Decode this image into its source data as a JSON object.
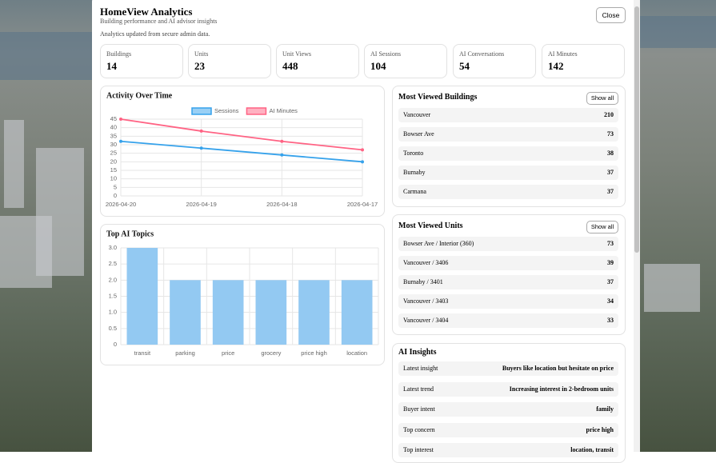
{
  "header": {
    "title": "HomeView Analytics",
    "subtitle": "Building performance and AI advisor insights",
    "note": "Analytics updated from secure admin data.",
    "close": "Close"
  },
  "stats": [
    {
      "label": "Buildings",
      "value": "14"
    },
    {
      "label": "Units",
      "value": "23"
    },
    {
      "label": "Unit Views",
      "value": "448"
    },
    {
      "label": "AI Sessions",
      "value": "104"
    },
    {
      "label": "AI Conversations",
      "value": "54"
    },
    {
      "label": "AI Minutes",
      "value": "142"
    }
  ],
  "chart_data": [
    {
      "type": "line",
      "title": "Activity Over Time",
      "categories": [
        "2026-04-20",
        "2026-04-19",
        "2026-04-18",
        "2026-04-17"
      ],
      "series": [
        {
          "name": "Sessions",
          "color": "#36a2eb",
          "values": [
            32,
            28,
            24,
            20
          ]
        },
        {
          "name": "AI Minutes",
          "color": "#ff6384",
          "values": [
            45,
            38,
            32,
            27
          ]
        }
      ],
      "ylim": [
        0,
        45
      ],
      "yticks": [
        0,
        5,
        10,
        15,
        20,
        25,
        30,
        35,
        40,
        45
      ],
      "grid": true,
      "legend": "top"
    },
    {
      "type": "bar",
      "title": "Top AI Topics",
      "categories": [
        "transit",
        "parking",
        "price",
        "grocery",
        "price high",
        "location"
      ],
      "values": [
        3,
        2,
        2,
        2,
        2,
        2
      ],
      "color": "#93c9f2",
      "ylim": [
        0,
        3
      ],
      "yticks": [
        0,
        0.5,
        {
          "value": 1,
          "label": "1.0"
        },
        {
          "value": 1.5,
          "label": "1.5"
        },
        {
          "value": 2,
          "label": "2.0"
        },
        {
          "value": 2.5,
          "label": "2.5"
        },
        {
          "value": 3,
          "label": "3.0"
        }
      ],
      "grid": true
    }
  ],
  "buildings": {
    "title": "Most Viewed Buildings",
    "button": "Show all",
    "rows": [
      [
        "Vancouver",
        "210"
      ],
      [
        "Bowser Ave",
        "73"
      ],
      [
        "Toronto",
        "38"
      ],
      [
        "Burnaby",
        "37"
      ],
      [
        "Carmana",
        "37"
      ]
    ]
  },
  "units": {
    "title": "Most Viewed Units",
    "button": "Show all",
    "rows": [
      [
        "Bowser Ave / Interior (360)",
        "73"
      ],
      [
        "Vancouver / 3406",
        "39"
      ],
      [
        "Burnaby / 3401",
        "37"
      ],
      [
        "Vancouver / 3403",
        "34"
      ],
      [
        "Vancouver / 3404",
        "33"
      ]
    ]
  },
  "insights": {
    "title": "AI Insights",
    "rows": [
      [
        "Latest insight",
        "Buyers like location but hesitate on price"
      ],
      [
        "Latest trend",
        "Increasing interest in 2-bedroom units"
      ],
      [
        "Buyer intent",
        "family"
      ],
      [
        "Top concern",
        "price high"
      ],
      [
        "Top interest",
        "location, transit"
      ]
    ]
  }
}
